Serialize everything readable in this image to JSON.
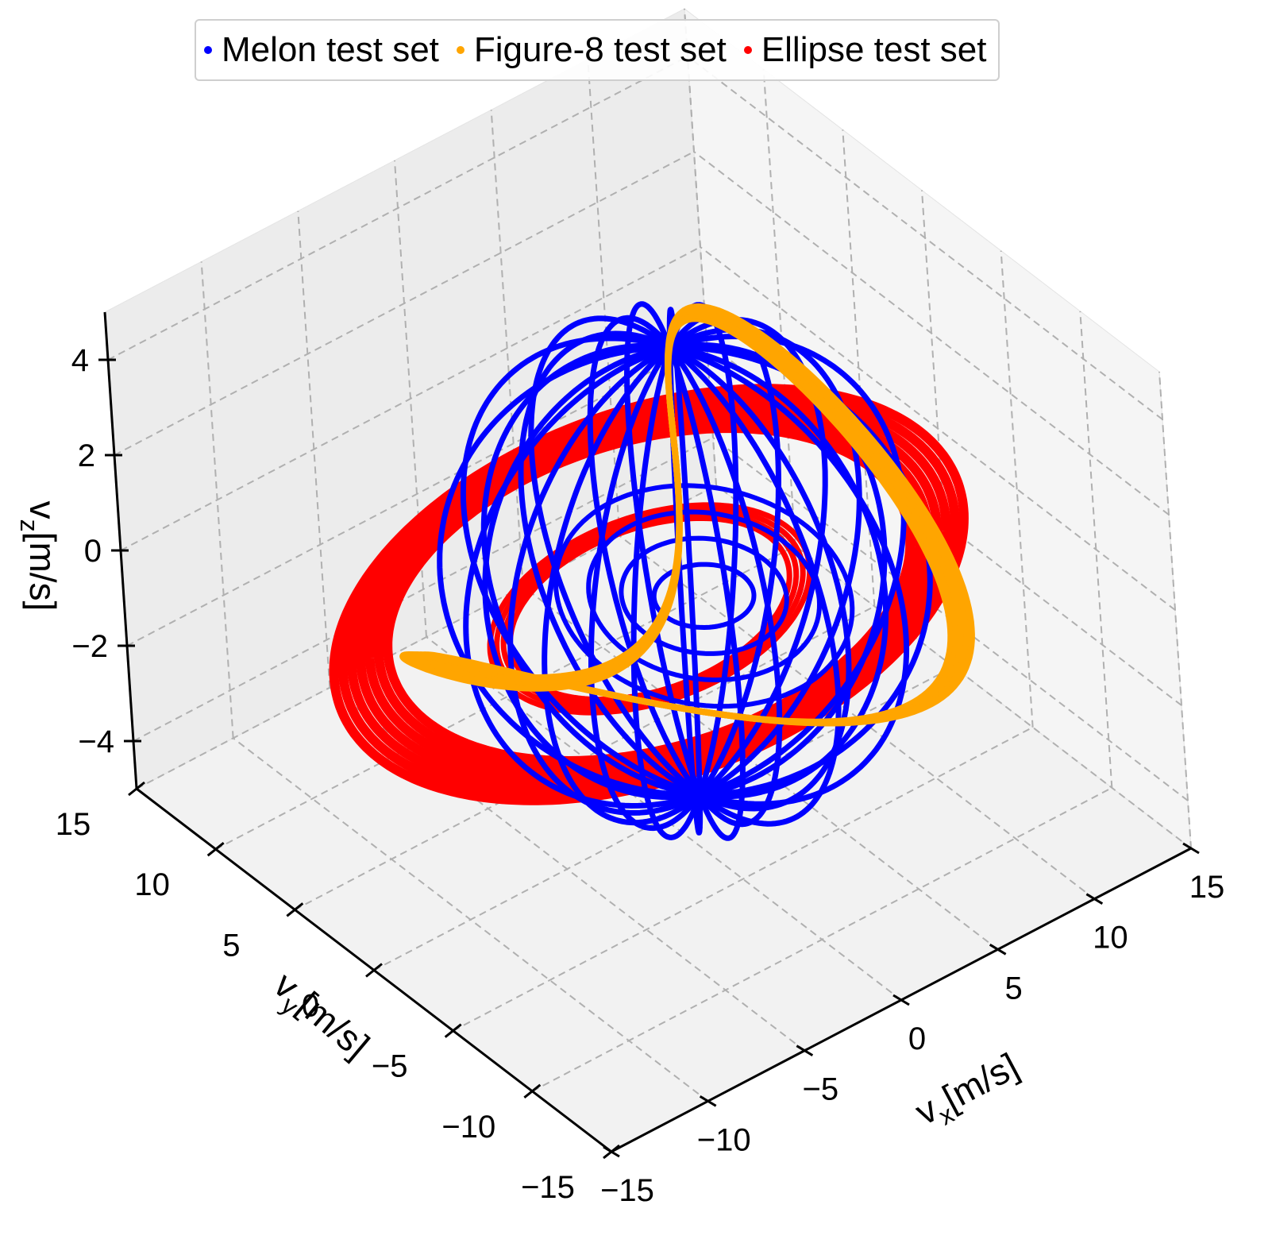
{
  "chart_data": {
    "type": "line",
    "projection": "3d",
    "title": "",
    "legend": {
      "placement": "top-center",
      "entries": [
        {
          "label": "Melon test set",
          "color": "#0000ff"
        },
        {
          "label": "Figure-8 test set",
          "color": "#ffa500"
        },
        {
          "label": "Ellipse test set",
          "color": "#ff0000"
        }
      ]
    },
    "axes": {
      "x": {
        "label": "v",
        "label_sub": "x",
        "label_unit": "[m/s]",
        "range": [
          -15,
          15
        ],
        "ticks": [
          -15,
          -10,
          -5,
          0,
          5,
          10,
          15
        ],
        "tick_labels": [
          "−15",
          "−10",
          "−5",
          "0",
          "5",
          "10",
          "15"
        ]
      },
      "y": {
        "label": "v",
        "label_sub": "y",
        "label_unit": "[m/s]",
        "range": [
          -15,
          15
        ],
        "ticks": [
          -15,
          -10,
          -5,
          0,
          5,
          10,
          15
        ],
        "tick_labels": [
          "−15",
          "−10",
          "−5",
          "0",
          "5",
          "10",
          "15"
        ]
      },
      "z": {
        "label": "v",
        "label_sub": "z",
        "label_unit": "[m/s]",
        "range": [
          -5,
          5
        ],
        "ticks": [
          -4,
          -2,
          0,
          2,
          4
        ],
        "tick_labels": [
          "−4",
          "−2",
          "0",
          "2",
          "4"
        ]
      }
    },
    "grid": true,
    "series": [
      {
        "name": "Melon test set",
        "color": "#0000ff",
        "shape": "rotating vertical loops (melon)",
        "loops": 14,
        "radius": 10,
        "z_amplitude": 4.7
      },
      {
        "name": "Figure-8 test set",
        "color": "#ffa500",
        "shape": "figure-eight",
        "x_amplitude": 10,
        "y_amplitude": 7,
        "z_amplitude": 3.2
      },
      {
        "name": "Ellipse test set",
        "color": "#ff0000",
        "shape": "near-horizontal ellipses",
        "semi_axis_x": 13,
        "semi_axis_y": 11,
        "z_range": [
          -2.4,
          2.0
        ]
      }
    ]
  }
}
